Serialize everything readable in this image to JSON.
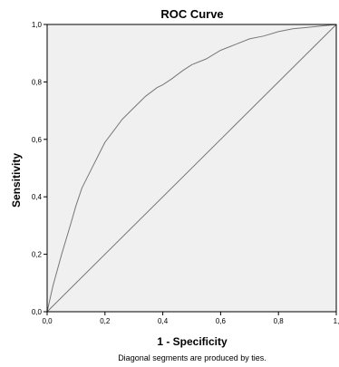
{
  "chart_data": {
    "type": "line",
    "title": "ROC Curve",
    "xlabel": "1 - Specificity",
    "ylabel": "Sensitivity",
    "footnote": "Diagonal segments are produced by ties.",
    "xlim": [
      0,
      1
    ],
    "ylim": [
      0,
      1
    ],
    "x_ticks": [
      "0,0",
      "0,2",
      "0,4",
      "0,6",
      "0,8",
      "1,"
    ],
    "y_ticks": [
      "0,0",
      "0,2",
      "0,4",
      "0,6",
      "0,8",
      "1,0"
    ],
    "grid": false,
    "series": [
      {
        "role": "roc",
        "color": "#777777",
        "x": [
          0.0,
          0.02,
          0.05,
          0.08,
          0.1,
          0.12,
          0.15,
          0.18,
          0.2,
          0.23,
          0.26,
          0.3,
          0.34,
          0.38,
          0.4,
          0.43,
          0.47,
          0.5,
          0.55,
          0.6,
          0.65,
          0.7,
          0.75,
          0.8,
          0.85,
          0.9,
          0.95,
          1.0
        ],
        "y": [
          0.0,
          0.09,
          0.2,
          0.3,
          0.37,
          0.43,
          0.49,
          0.55,
          0.59,
          0.63,
          0.67,
          0.71,
          0.75,
          0.78,
          0.79,
          0.81,
          0.84,
          0.86,
          0.88,
          0.91,
          0.93,
          0.95,
          0.96,
          0.975,
          0.985,
          0.99,
          0.995,
          1.0
        ]
      },
      {
        "role": "reference",
        "color": "#777777",
        "x": [
          0,
          1
        ],
        "y": [
          0,
          1
        ]
      }
    ],
    "colors": {
      "plot_background": "#f0f0f0",
      "frame": "#000000"
    }
  }
}
